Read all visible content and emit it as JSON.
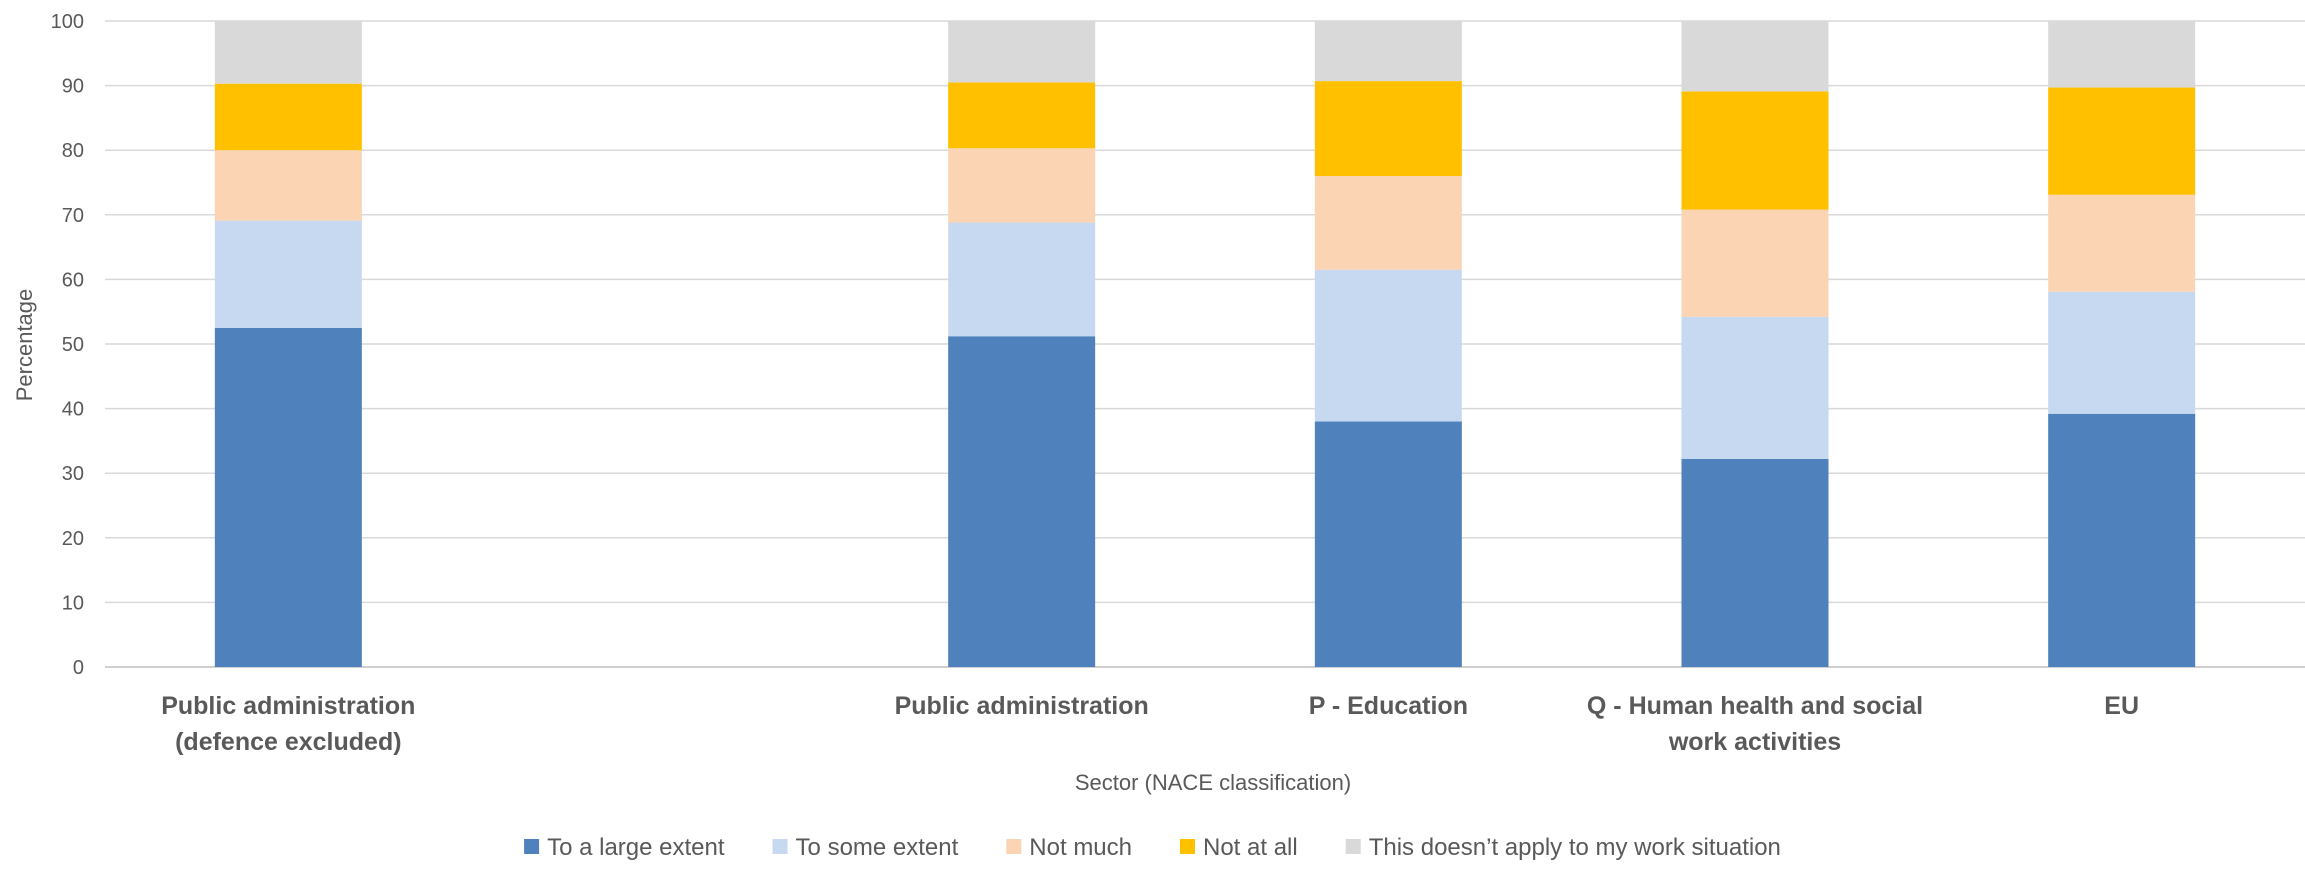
{
  "chart_data": {
    "type": "bar",
    "stacked": true,
    "title": "",
    "xlabel": "Sector (NACE classification)",
    "ylabel": "Percentage",
    "ylim": [
      0,
      100
    ],
    "yticks": [
      0,
      10,
      20,
      30,
      40,
      50,
      60,
      70,
      80,
      90,
      100
    ],
    "grid": true,
    "legend_position": "bottom",
    "categories": [
      [
        "Public administration",
        "(defence excluded)"
      ],
      [
        "Public administration"
      ],
      [
        "P - Education"
      ],
      [
        "Q - Human health and social",
        "work activities"
      ],
      [
        "EU"
      ]
    ],
    "category_slots": [
      0,
      2,
      3,
      4,
      5
    ],
    "slot_count": 6,
    "series": [
      {
        "name": "To a large extent",
        "color": "#4F81BD",
        "values": [
          52.5,
          51.2,
          38.0,
          32.2,
          39.2
        ]
      },
      {
        "name": "To some extent",
        "color": "#C6D9F1",
        "values": [
          16.6,
          17.6,
          23.5,
          22.0,
          18.9
        ]
      },
      {
        "name": "Not much",
        "color": "#FBD4B4",
        "values": [
          10.9,
          11.5,
          14.5,
          16.6,
          15.0
        ]
      },
      {
        "name": "Not at all",
        "color": "#FFC000",
        "values": [
          10.3,
          10.2,
          14.7,
          18.3,
          16.6
        ]
      },
      {
        "name": "This doesn’t apply to my work situation",
        "color": "#D9D9D9",
        "values": [
          9.7,
          9.5,
          9.3,
          10.9,
          10.3
        ]
      }
    ]
  }
}
